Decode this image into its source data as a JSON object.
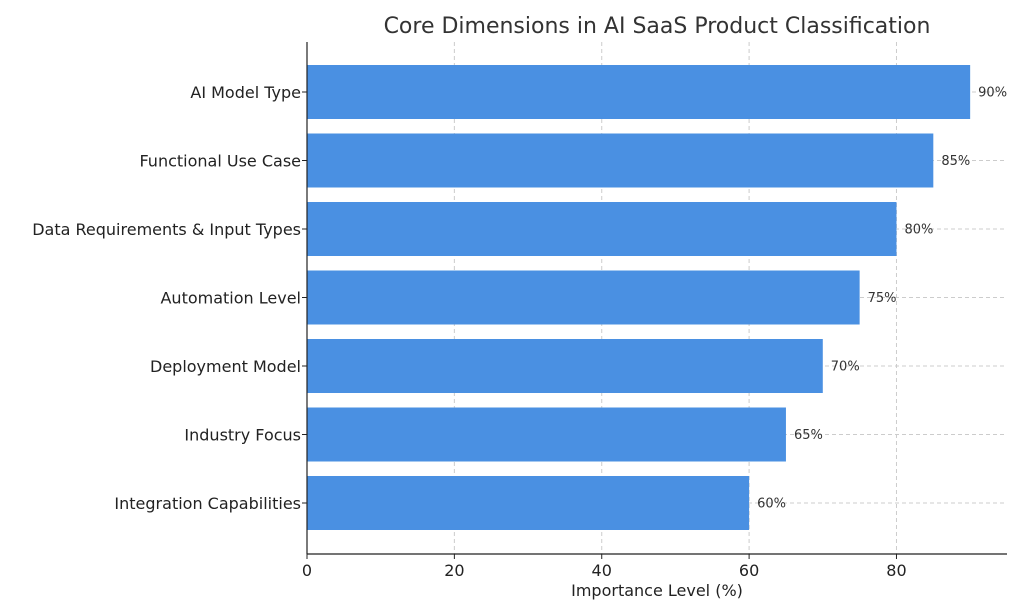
{
  "chart_data": {
    "type": "bar",
    "orientation": "horizontal",
    "title": "Core Dimensions in AI SaaS Product Classification",
    "xlabel": "Importance Level (%)",
    "ylabel": "",
    "categories": [
      "AI Model Type",
      "Functional Use Case",
      "Data Requirements & Input Types",
      "Automation Level",
      "Deployment Model",
      "Industry Focus",
      "Integration Capabilities"
    ],
    "values": [
      90,
      85,
      80,
      75,
      70,
      65,
      60
    ],
    "data_labels": [
      "90%",
      "85%",
      "80%",
      "75%",
      "70%",
      "65%",
      "60%"
    ],
    "xlim": [
      0,
      95
    ],
    "xticks": [
      0,
      20,
      40,
      60,
      80
    ],
    "grid": true,
    "bar_color": "#4a90e2"
  }
}
